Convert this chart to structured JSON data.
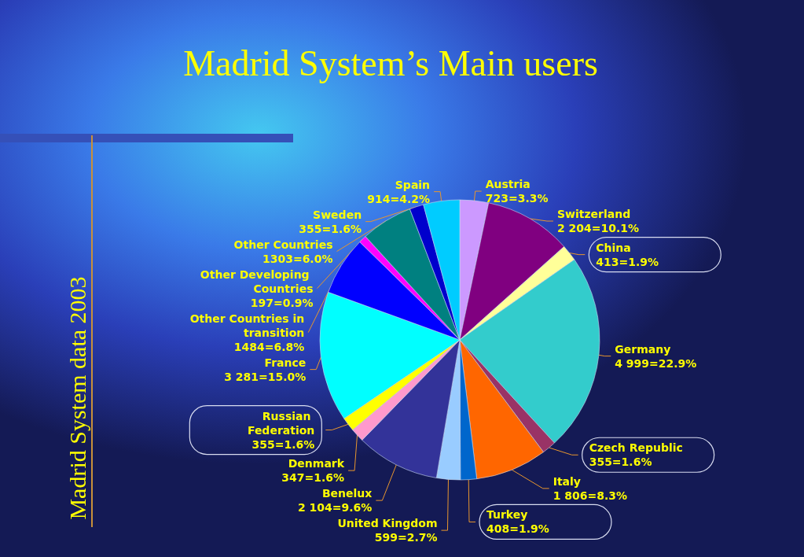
{
  "chart_data": {
    "type": "pie",
    "title": "Madrid System’s Main users",
    "annotations": [
      "Madrid System data 2003"
    ],
    "categories": [
      "Austria",
      "Switzerland",
      "China",
      "Germany",
      "Czech Republic",
      "Italy",
      "Turkey",
      "United Kingdom",
      "Benelux",
      "Denmark",
      "Russian Federation",
      "France",
      "Other Countries in transition",
      "Other Developing Countries",
      "Other Countries",
      "Sweden",
      "Spain"
    ],
    "values": [
      723,
      2204,
      413,
      4999,
      355,
      1806,
      408,
      599,
      2104,
      347,
      355,
      3281,
      1484,
      197,
      1303,
      355,
      914
    ],
    "value_labels": [
      "723=3.3%",
      "2 204=10.1%",
      "413=1.9%",
      "4 999=22.9%",
      "355=1.6%",
      "1 806=8.3%",
      "408=1.9%",
      "599=2.7%",
      "2 104=9.6%",
      "347=1.6%",
      "355=1.6%",
      "3 281=15.0%",
      "1484=6.8%",
      "197=0.9%",
      "1303=6.0%",
      "355=1.6%",
      "914=4.2%"
    ],
    "colors": [
      "#cc99ff",
      "#800080",
      "#ffff99",
      "#33cccc",
      "#993366",
      "#ff6600",
      "#0066cc",
      "#99ccff",
      "#333399",
      "#ff99cc",
      "#ffff00",
      "#00ffff",
      "#0000ff",
      "#ff00ff",
      "#008080",
      "#0000cc",
      "#00ccff"
    ]
  }
}
